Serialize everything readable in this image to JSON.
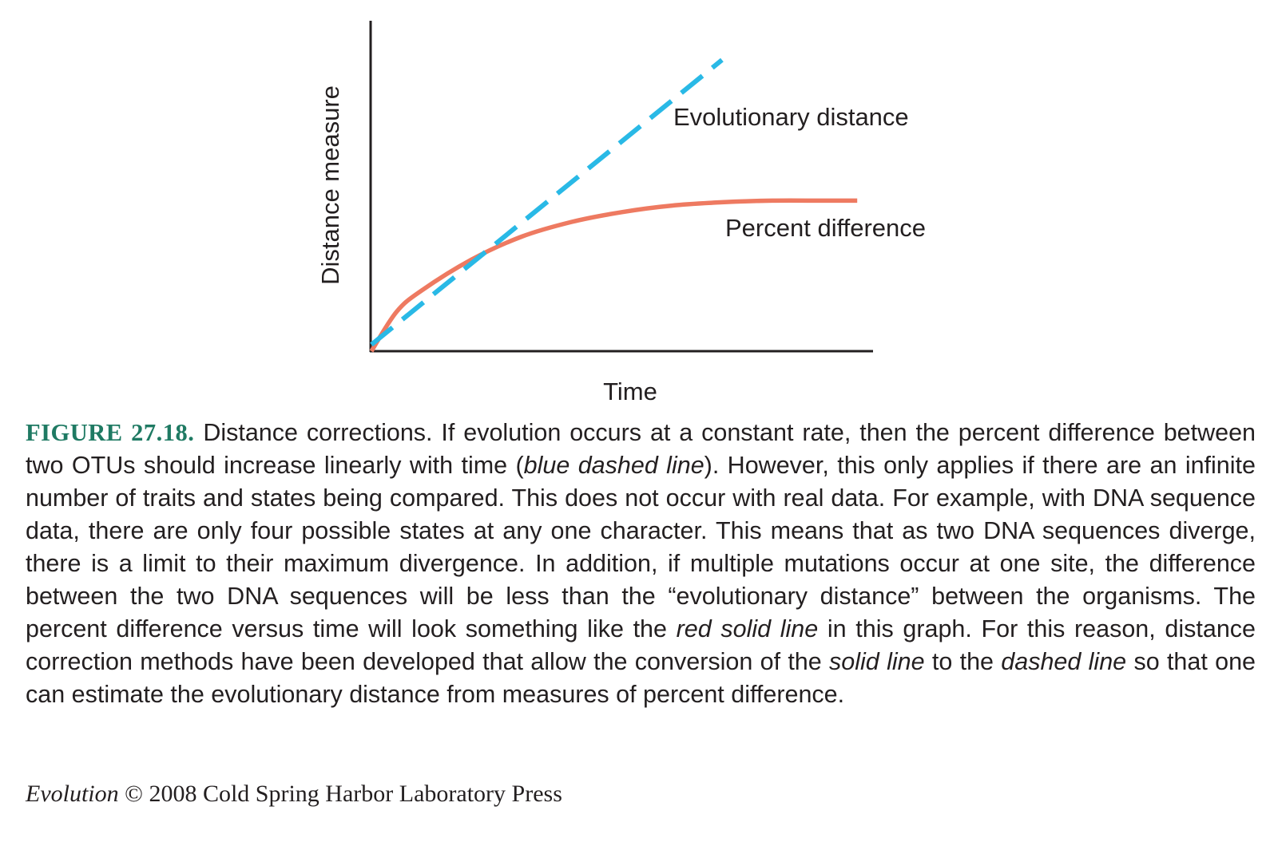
{
  "chart_data": {
    "type": "line",
    "title": "",
    "xlabel": "Time",
    "ylabel": "Distance measure",
    "xlim": [
      0,
      100
    ],
    "ylim": [
      0,
      100
    ],
    "grid": false,
    "legend": "none",
    "series": [
      {
        "name": "Evolutionary distance",
        "style": "dashed",
        "color": "#29b9e6",
        "x": [
          0,
          70
        ],
        "y": [
          2,
          89
        ]
      },
      {
        "name": "Percent difference",
        "style": "solid",
        "color": "#ee7a61",
        "x": [
          0,
          5,
          10,
          20,
          30,
          40,
          50,
          60,
          70,
          80,
          90,
          97
        ],
        "y": [
          0,
          12,
          18.5,
          28,
          35,
          39.5,
          42.5,
          44.5,
          45.5,
          46,
          46,
          46
        ]
      }
    ]
  },
  "caption": {
    "label": "FIGURE 27.18.",
    "parts": [
      {
        "t": " Distance corrections. If evolution occurs at a constant rate, then the percent difference between two OTUs should increase linearly with time (",
        "i": false
      },
      {
        "t": "blue dashed line",
        "i": true
      },
      {
        "t": "). However, this only applies if there are an infinite number of traits and states being compared. This does not occur with real data. For example, with DNA sequence data, there are only four possible states at any one character. This means that as two DNA sequences diverge, there is a limit to their maximum divergence. In addition, if multiple mutations occur at one site, the difference between the two DNA sequences will be less than the “evolutionary distance” between the organisms. The percent difference versus time will look something like the ",
        "i": false
      },
      {
        "t": "red solid line",
        "i": true
      },
      {
        "t": " in this graph. For this reason, distance correction methods have been developed that allow the conversion of the ",
        "i": false
      },
      {
        "t": "solid line",
        "i": true
      },
      {
        "t": " to the ",
        "i": false
      },
      {
        "t": "dashed line",
        "i": true
      },
      {
        "t": " so that one can estimate the evolutionary distance from measures of percent difference.",
        "i": false
      }
    ]
  },
  "credit": {
    "title": "Evolution",
    "text": " © 2008 Cold Spring Harbor Laboratory Press"
  }
}
